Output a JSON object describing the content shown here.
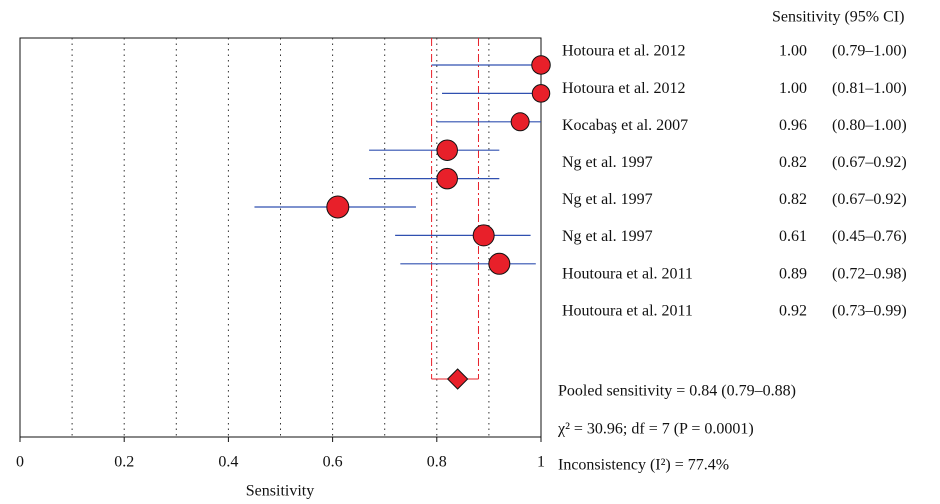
{
  "chart_data": {
    "type": "forest",
    "xlabel": "Sensitivity",
    "column_header": "Sensitivity (95% CI)",
    "xlim": [
      0,
      1
    ],
    "xticks": [
      0,
      0.2,
      0.4,
      0.6,
      0.8,
      1
    ],
    "xgrid": [
      0.1,
      0.2,
      0.3,
      0.4,
      0.5,
      0.6,
      0.7,
      0.8,
      0.9
    ],
    "categories": [
      "Hotoura et al. 2012",
      "Hotoura et al. 2012",
      "Kocabaş et al. 2007",
      "Ng et al. 1997",
      "Ng et al. 1997",
      "Ng et al. 1997",
      "Houtoura et al. 2011",
      "Houtoura et al. 2011"
    ],
    "values": [
      1,
      1,
      0.96,
      0.82,
      0.82,
      0.61,
      0.89,
      0.92
    ],
    "value_labels": [
      "1.00",
      "1.00",
      "0.96",
      "0.82",
      "0.82",
      "0.61",
      "0.89",
      "0.92"
    ],
    "lower": [
      0.79,
      0.81,
      0.8,
      0.67,
      0.67,
      0.45,
      0.72,
      0.73
    ],
    "upper": [
      1,
      1,
      1,
      0.92,
      0.92,
      0.76,
      0.98,
      0.99
    ],
    "ci_labels": [
      "(0.79–1.00)",
      "(0.81–1.00)",
      "(0.80–1.00)",
      "(0.67–0.92)",
      "(0.67–0.92)",
      "(0.45–0.76)",
      "(0.72–0.98)",
      "(0.73–0.99)"
    ],
    "marker_color": "#e8202a",
    "ci_color": "#3050b0",
    "pooled": {
      "value": 0.84,
      "lower": 0.79,
      "upper": 0.88,
      "color": "#e8202a"
    },
    "annotations": [
      "Pooled sensitivity = 0.84 (0.79–0.88)",
      "χ² = 30.96; df = 7 (P = 0.0001)",
      "Inconsistency (I²) = 77.4%"
    ]
  }
}
